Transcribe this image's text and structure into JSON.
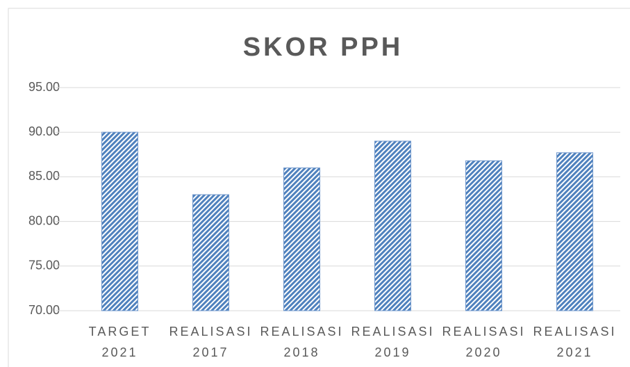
{
  "chart_data": {
    "type": "bar",
    "title": "SKOR PPH",
    "categories": [
      "TARGET 2021",
      "REALISASI 2017",
      "REALISASI 2018",
      "REALISASI 2019",
      "REALISASI 2020",
      "REALISASI 2021"
    ],
    "values": [
      90,
      83,
      86,
      89,
      86.8,
      87.7
    ],
    "color": "#4f81bd",
    "ylim": [
      70,
      95
    ],
    "yticks": [
      {
        "value": 70,
        "label": "70.00"
      },
      {
        "value": 75,
        "label": "75.00"
      },
      {
        "value": 80,
        "label": "80.00"
      },
      {
        "value": 85,
        "label": "85.00"
      },
      {
        "value": 90,
        "label": "90.00"
      },
      {
        "value": 95,
        "label": "95.00"
      }
    ],
    "grid": true
  }
}
